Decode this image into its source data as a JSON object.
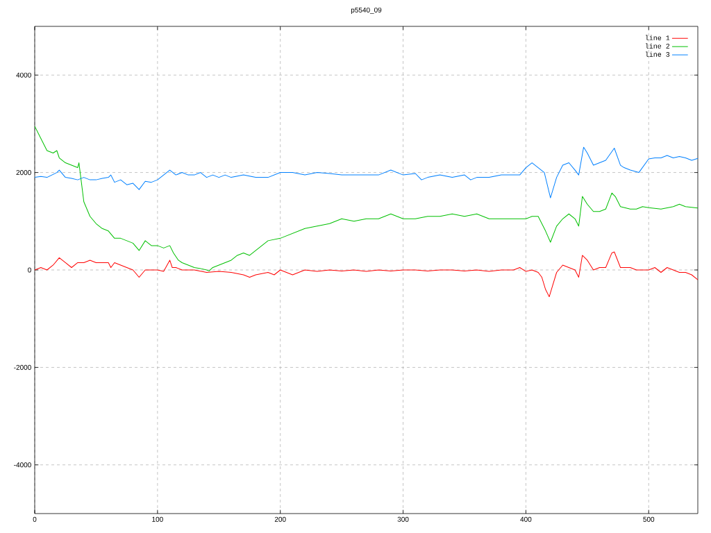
{
  "chart_data": {
    "type": "line",
    "title": "p5540_09",
    "xlim": [
      0,
      540
    ],
    "ylim": [
      -5000,
      5000
    ],
    "xticks": [
      0,
      100,
      200,
      300,
      400,
      500
    ],
    "yticks": [
      -4000,
      -2000,
      0,
      2000,
      4000
    ],
    "grid": true,
    "legend": "top right",
    "series": [
      {
        "name": "line 1",
        "color": "#ff0000",
        "x": [
          0,
          5,
          10,
          15,
          20,
          25,
          30,
          35,
          40,
          45,
          50,
          55,
          60,
          62,
          65,
          70,
          75,
          80,
          85,
          90,
          95,
          100,
          105,
          110,
          112,
          115,
          120,
          130,
          140,
          150,
          160,
          170,
          175,
          180,
          190,
          195,
          200,
          210,
          220,
          230,
          240,
          250,
          260,
          270,
          280,
          290,
          300,
          310,
          320,
          330,
          340,
          350,
          360,
          370,
          380,
          390,
          395,
          400,
          405,
          410,
          413,
          416,
          419,
          422,
          425,
          430,
          435,
          440,
          443,
          446,
          450,
          455,
          460,
          465,
          470,
          472,
          477,
          485,
          490,
          500,
          505,
          510,
          515,
          520,
          525,
          530,
          535,
          540
        ],
        "values": [
          0,
          50,
          0,
          100,
          250,
          150,
          50,
          150,
          150,
          200,
          150,
          150,
          150,
          50,
          150,
          100,
          50,
          0,
          -150,
          0,
          0,
          0,
          -30,
          200,
          50,
          50,
          0,
          0,
          -50,
          -30,
          -50,
          -100,
          -150,
          -100,
          -50,
          -100,
          0,
          -100,
          0,
          -30,
          0,
          -20,
          0,
          -30,
          0,
          -20,
          0,
          0,
          -20,
          0,
          0,
          -20,
          0,
          -30,
          0,
          0,
          50,
          -30,
          0,
          -50,
          -150,
          -400,
          -550,
          -300,
          -50,
          100,
          50,
          0,
          -150,
          300,
          200,
          0,
          50,
          50,
          350,
          370,
          50,
          50,
          0,
          0,
          50,
          -50,
          50,
          0,
          -50,
          -50,
          -100,
          -200
        ]
      },
      {
        "name": "line 2",
        "color": "#00c000",
        "x": [
          0,
          5,
          10,
          15,
          18,
          20,
          25,
          30,
          35,
          36,
          38,
          40,
          45,
          50,
          55,
          60,
          65,
          70,
          75,
          80,
          85,
          90,
          95,
          100,
          105,
          110,
          113,
          117,
          120,
          125,
          130,
          135,
          140,
          142,
          145,
          150,
          160,
          165,
          170,
          175,
          180,
          185,
          190,
          200,
          210,
          220,
          230,
          240,
          250,
          260,
          270,
          280,
          290,
          300,
          310,
          320,
          330,
          340,
          350,
          360,
          370,
          380,
          390,
          400,
          405,
          410,
          413,
          416,
          420,
          425,
          430,
          435,
          440,
          443,
          446,
          450,
          455,
          460,
          465,
          470,
          473,
          477,
          485,
          490,
          495,
          500,
          510,
          520,
          525,
          530,
          540
        ],
        "values": [
          2950,
          2700,
          2450,
          2400,
          2450,
          2300,
          2200,
          2150,
          2100,
          2200,
          1800,
          1400,
          1100,
          950,
          850,
          800,
          650,
          650,
          600,
          550,
          400,
          600,
          500,
          500,
          450,
          500,
          350,
          200,
          150,
          100,
          50,
          30,
          0,
          -20,
          50,
          100,
          200,
          300,
          350,
          300,
          400,
          500,
          600,
          650,
          750,
          850,
          900,
          950,
          1050,
          1000,
          1050,
          1050,
          1150,
          1050,
          1050,
          1100,
          1100,
          1150,
          1100,
          1150,
          1050,
          1050,
          1050,
          1050,
          1100,
          1100,
          950,
          800,
          570,
          900,
          1050,
          1150,
          1050,
          900,
          1510,
          1350,
          1200,
          1200,
          1250,
          1580,
          1500,
          1300,
          1250,
          1250,
          1300,
          1280,
          1250,
          1300,
          1350,
          1300,
          1270
        ]
      },
      {
        "name": "line 3",
        "color": "#0080ff",
        "x": [
          0,
          5,
          10,
          18,
          20,
          25,
          30,
          35,
          40,
          45,
          50,
          55,
          60,
          62,
          65,
          70,
          75,
          80,
          85,
          90,
          95,
          100,
          105,
          110,
          115,
          120,
          125,
          130,
          135,
          140,
          145,
          150,
          155,
          160,
          170,
          180,
          190,
          200,
          210,
          220,
          230,
          240,
          250,
          260,
          270,
          280,
          290,
          300,
          310,
          315,
          320,
          330,
          340,
          350,
          355,
          360,
          370,
          380,
          390,
          395,
          400,
          405,
          410,
          415,
          420,
          425,
          430,
          435,
          440,
          443,
          447,
          450,
          455,
          460,
          465,
          472,
          477,
          480,
          485,
          492,
          500,
          505,
          510,
          515,
          520,
          525,
          530,
          535,
          540
        ],
        "values": [
          1900,
          1920,
          1900,
          2000,
          2050,
          1900,
          1880,
          1850,
          1900,
          1850,
          1850,
          1880,
          1900,
          1950,
          1800,
          1850,
          1750,
          1780,
          1650,
          1820,
          1800,
          1850,
          1950,
          2050,
          1950,
          2000,
          1950,
          1950,
          2000,
          1900,
          1950,
          1900,
          1950,
          1900,
          1950,
          1900,
          1900,
          2000,
          2000,
          1950,
          2000,
          1980,
          1950,
          1950,
          1950,
          1950,
          2050,
          1950,
          1980,
          1850,
          1900,
          1950,
          1900,
          1950,
          1850,
          1900,
          1900,
          1950,
          1950,
          1950,
          2100,
          2200,
          2100,
          2000,
          1480,
          1900,
          2150,
          2200,
          2050,
          1950,
          2520,
          2400,
          2150,
          2200,
          2250,
          2500,
          2150,
          2100,
          2050,
          2000,
          2280,
          2300,
          2300,
          2350,
          2300,
          2330,
          2300,
          2250,
          2290
        ]
      }
    ]
  }
}
